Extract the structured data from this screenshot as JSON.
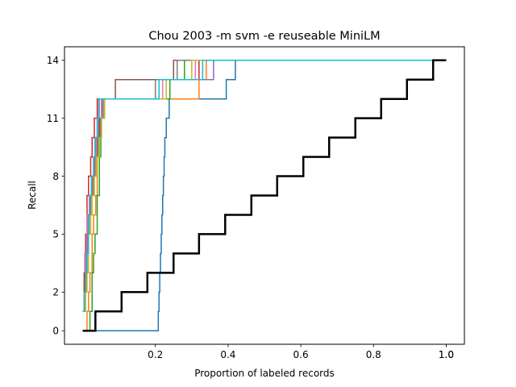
{
  "chart_data": {
    "type": "line",
    "title": "Chou 2003 -m svm -e reuseable MiniLM",
    "xlabel": "Proportion of labeled records",
    "ylabel": "Recall",
    "xlim": [
      -0.05,
      1.05
    ],
    "ylim": [
      -0.7,
      14.7
    ],
    "x_ticks": [
      0.2,
      0.4,
      0.6,
      0.8,
      1.0
    ],
    "x_tick_labels": [
      "0.2",
      "0.4",
      "0.6",
      "0.8",
      "1.0"
    ],
    "extra_x_tick_labels": [
      {
        "x": 1.0,
        "label": "1.0"
      }
    ],
    "y_ticks": [
      0,
      2,
      5,
      8,
      11,
      14
    ],
    "y_tick_labels": [
      "0",
      "2",
      "5",
      "8",
      "11",
      "14"
    ],
    "grid": false,
    "legend": "none",
    "series": [
      {
        "color": "#1f77b4",
        "width": 1.5,
        "points": [
          [
            0.0,
            0
          ],
          [
            0.206,
            0
          ],
          [
            0.208,
            1
          ],
          [
            0.21,
            2
          ],
          [
            0.212,
            3
          ],
          [
            0.214,
            4
          ],
          [
            0.216,
            5
          ],
          [
            0.218,
            6
          ],
          [
            0.22,
            7
          ],
          [
            0.222,
            8
          ],
          [
            0.224,
            9
          ],
          [
            0.226,
            10
          ],
          [
            0.23,
            11
          ],
          [
            0.238,
            12
          ],
          [
            0.395,
            13
          ],
          [
            0.42,
            14
          ],
          [
            1.0,
            14
          ]
        ]
      },
      {
        "color": "#ff7f0e",
        "width": 1.5,
        "points": [
          [
            0.0,
            0
          ],
          [
            0.012,
            1
          ],
          [
            0.016,
            2
          ],
          [
            0.02,
            3
          ],
          [
            0.026,
            5
          ],
          [
            0.03,
            6
          ],
          [
            0.036,
            7
          ],
          [
            0.04,
            9
          ],
          [
            0.044,
            10
          ],
          [
            0.048,
            11
          ],
          [
            0.055,
            12
          ],
          [
            0.32,
            13
          ],
          [
            0.34,
            14
          ],
          [
            1.0,
            14
          ]
        ]
      },
      {
        "color": "#2ca02c",
        "width": 1.5,
        "points": [
          [
            0.0,
            0
          ],
          [
            0.016,
            0
          ],
          [
            0.02,
            1
          ],
          [
            0.026,
            3
          ],
          [
            0.03,
            4
          ],
          [
            0.034,
            5
          ],
          [
            0.04,
            7
          ],
          [
            0.046,
            9
          ],
          [
            0.05,
            11
          ],
          [
            0.056,
            12
          ],
          [
            0.24,
            13
          ],
          [
            0.28,
            14
          ],
          [
            1.0,
            14
          ]
        ]
      },
      {
        "color": "#d62728",
        "width": 1.5,
        "points": [
          [
            0.0,
            1
          ],
          [
            0.004,
            3
          ],
          [
            0.008,
            5
          ],
          [
            0.012,
            7
          ],
          [
            0.016,
            8
          ],
          [
            0.022,
            9
          ],
          [
            0.026,
            10
          ],
          [
            0.032,
            11
          ],
          [
            0.04,
            12
          ],
          [
            0.2,
            13
          ],
          [
            0.32,
            14
          ],
          [
            1.0,
            14
          ]
        ]
      },
      {
        "color": "#9467bd",
        "width": 1.5,
        "points": [
          [
            0.0,
            1
          ],
          [
            0.004,
            2
          ],
          [
            0.006,
            4
          ],
          [
            0.01,
            5
          ],
          [
            0.014,
            6
          ],
          [
            0.02,
            7
          ],
          [
            0.024,
            8
          ],
          [
            0.03,
            9
          ],
          [
            0.036,
            10
          ],
          [
            0.044,
            11
          ],
          [
            0.052,
            12
          ],
          [
            0.2,
            13
          ],
          [
            0.36,
            14
          ],
          [
            1.0,
            14
          ]
        ]
      },
      {
        "color": "#8c564b",
        "width": 1.5,
        "points": [
          [
            0.0,
            1
          ],
          [
            0.006,
            3
          ],
          [
            0.012,
            5
          ],
          [
            0.016,
            6
          ],
          [
            0.022,
            7
          ],
          [
            0.028,
            8
          ],
          [
            0.034,
            9
          ],
          [
            0.04,
            10
          ],
          [
            0.046,
            11
          ],
          [
            0.06,
            12
          ],
          [
            0.09,
            13
          ],
          [
            0.25,
            14
          ],
          [
            1.0,
            14
          ]
        ]
      },
      {
        "color": "#e377c2",
        "width": 1.5,
        "points": [
          [
            0.0,
            1
          ],
          [
            0.004,
            2
          ],
          [
            0.008,
            4
          ],
          [
            0.012,
            6
          ],
          [
            0.018,
            7
          ],
          [
            0.024,
            8
          ],
          [
            0.03,
            9
          ],
          [
            0.034,
            10
          ],
          [
            0.04,
            11
          ],
          [
            0.046,
            12
          ],
          [
            0.22,
            13
          ],
          [
            0.31,
            14
          ],
          [
            1.0,
            14
          ]
        ]
      },
      {
        "color": "#7f7f7f",
        "width": 1.5,
        "points": [
          [
            0.0,
            1
          ],
          [
            0.006,
            2
          ],
          [
            0.01,
            4
          ],
          [
            0.014,
            5
          ],
          [
            0.018,
            6
          ],
          [
            0.026,
            7
          ],
          [
            0.032,
            8
          ],
          [
            0.038,
            9
          ],
          [
            0.044,
            10
          ],
          [
            0.05,
            11
          ],
          [
            0.056,
            12
          ],
          [
            0.2,
            13
          ],
          [
            0.26,
            14
          ],
          [
            1.0,
            14
          ]
        ]
      },
      {
        "color": "#bcbd22",
        "width": 1.5,
        "points": [
          [
            0.0,
            1
          ],
          [
            0.008,
            2
          ],
          [
            0.012,
            3
          ],
          [
            0.016,
            5
          ],
          [
            0.022,
            6
          ],
          [
            0.026,
            7
          ],
          [
            0.032,
            8
          ],
          [
            0.038,
            9
          ],
          [
            0.046,
            10
          ],
          [
            0.052,
            11
          ],
          [
            0.06,
            12
          ],
          [
            0.23,
            13
          ],
          [
            0.3,
            14
          ],
          [
            1.0,
            14
          ]
        ]
      },
      {
        "color": "#17becf",
        "width": 1.5,
        "points": [
          [
            0.0,
            1
          ],
          [
            0.004,
            2
          ],
          [
            0.008,
            3
          ],
          [
            0.012,
            4
          ],
          [
            0.016,
            6
          ],
          [
            0.02,
            7
          ],
          [
            0.024,
            8
          ],
          [
            0.03,
            9
          ],
          [
            0.034,
            10
          ],
          [
            0.04,
            11
          ],
          [
            0.044,
            12
          ],
          [
            0.21,
            13
          ],
          [
            0.33,
            14
          ],
          [
            1.0,
            14
          ]
        ]
      },
      {
        "color": "#000000",
        "width": 2.5,
        "points": [
          [
            0.0,
            0
          ],
          [
            0.035,
            0
          ],
          [
            0.035,
            1
          ],
          [
            0.107,
            1
          ],
          [
            0.107,
            2
          ],
          [
            0.178,
            2
          ],
          [
            0.178,
            3
          ],
          [
            0.25,
            3
          ],
          [
            0.25,
            4
          ],
          [
            0.32,
            4
          ],
          [
            0.32,
            5
          ],
          [
            0.392,
            5
          ],
          [
            0.392,
            6
          ],
          [
            0.464,
            6
          ],
          [
            0.464,
            7
          ],
          [
            0.535,
            7
          ],
          [
            0.535,
            8
          ],
          [
            0.607,
            8
          ],
          [
            0.607,
            9
          ],
          [
            0.678,
            9
          ],
          [
            0.678,
            10
          ],
          [
            0.75,
            10
          ],
          [
            0.75,
            11
          ],
          [
            0.821,
            11
          ],
          [
            0.821,
            12
          ],
          [
            0.892,
            12
          ],
          [
            0.892,
            13
          ],
          [
            0.964,
            13
          ],
          [
            0.964,
            14
          ],
          [
            1.0,
            14
          ]
        ]
      }
    ]
  }
}
